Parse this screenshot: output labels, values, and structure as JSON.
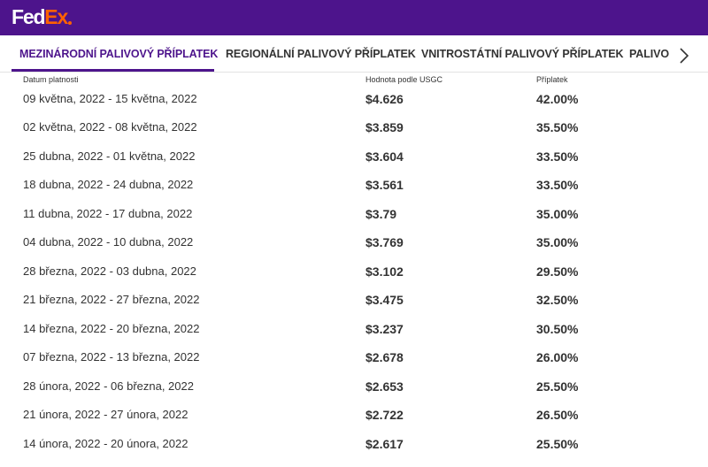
{
  "brand": {
    "logo_part1": "Fed",
    "logo_part2": "Ex",
    "brand_purple": "#4d148c",
    "brand_orange": "#ff6200"
  },
  "tabs": [
    {
      "label": "MEZINÁRODNÍ PALIVOVÝ PŘÍPLATEK",
      "active": true
    },
    {
      "label": "REGIONÁLNÍ PALIVOVÝ PŘÍPLATEK",
      "active": false
    },
    {
      "label": "VNITROSTÁTNÍ PALIVOVÝ PŘÍPLATEK",
      "active": false
    },
    {
      "label": "PALIVO",
      "active": false
    }
  ],
  "tabs_next_icon": "chevron-right-icon",
  "table": {
    "headers": {
      "date": "Datum platnosti",
      "value": "Hodnota podle USGC",
      "surcharge": "Příplatek"
    },
    "rows": [
      {
        "date": "09 května, 2022 - 15 května, 2022",
        "value": "$4.626",
        "surcharge": "42.00%"
      },
      {
        "date": "02 května, 2022 - 08 května, 2022",
        "value": "$3.859",
        "surcharge": "35.50%"
      },
      {
        "date": "25 dubna, 2022 - 01 května, 2022",
        "value": "$3.604",
        "surcharge": "33.50%"
      },
      {
        "date": "18 dubna, 2022 - 24 dubna, 2022",
        "value": "$3.561",
        "surcharge": "33.50%"
      },
      {
        "date": "11 dubna, 2022 - 17 dubna, 2022",
        "value": "$3.79",
        "surcharge": "35.00%"
      },
      {
        "date": "04 dubna, 2022 - 10 dubna, 2022",
        "value": "$3.769",
        "surcharge": "35.00%"
      },
      {
        "date": "28 března, 2022 - 03 dubna, 2022",
        "value": "$3.102",
        "surcharge": "29.50%"
      },
      {
        "date": "21 března, 2022 - 27 března, 2022",
        "value": "$3.475",
        "surcharge": "32.50%"
      },
      {
        "date": "14 března, 2022 - 20 března, 2022",
        "value": "$3.237",
        "surcharge": "30.50%"
      },
      {
        "date": "07 března, 2022 - 13 března, 2022",
        "value": "$2.678",
        "surcharge": "26.00%"
      },
      {
        "date": "28 února, 2022 - 06 března, 2022",
        "value": "$2.653",
        "surcharge": "25.50%"
      },
      {
        "date": "21 února, 2022 - 27 února, 2022",
        "value": "$2.722",
        "surcharge": "26.50%"
      },
      {
        "date": "14 února, 2022 - 20 února, 2022",
        "value": "$2.617",
        "surcharge": "25.50%"
      }
    ]
  }
}
